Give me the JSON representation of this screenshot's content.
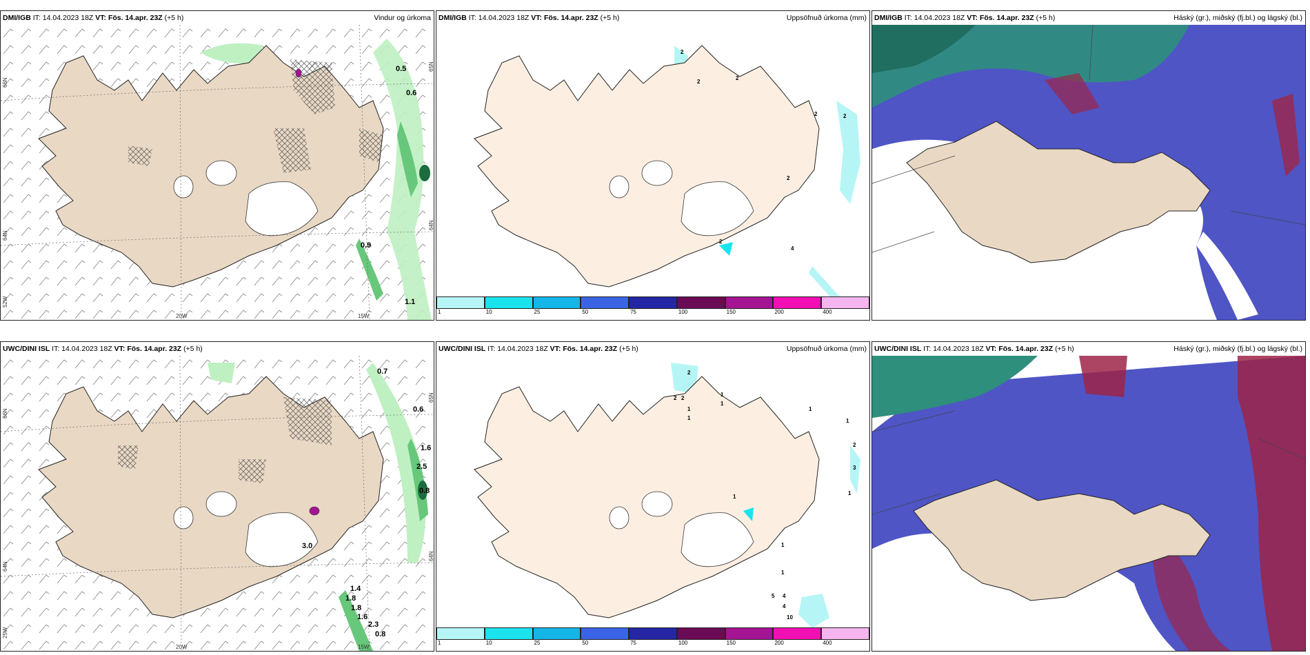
{
  "colors": {
    "land": "#e9d8c4",
    "land_light": "#fcefe2",
    "ice": "#ffffff",
    "precip_green_light": "#bff0c2",
    "precip_green_mid": "#67c77a",
    "precip_green_dark": "#1d6b3e",
    "cyan_light": "#b6f5f5",
    "cloud_high": "#2e8f7c",
    "cloud_mid": "#4f55c5",
    "cloud_low_red": "#9c2548"
  },
  "panels": [
    {
      "model": "DMI/IGB",
      "it_label": "IT:",
      "it_value": "14.04.2023 18Z",
      "vt_label": "VT:",
      "vt_value": "Fös. 14.apr. 23Z",
      "lead": "(+5 h)",
      "title": "Vindur og úrkoma",
      "coords": {
        "lat1": "66N",
        "lat2": "64N",
        "lat3": "52W",
        "lon1": "20W",
        "lon2": "15W",
        "rlat1": "65N",
        "rlat2": "64N"
      },
      "values": [
        "0.5",
        "0.6",
        "0.9",
        "1.1"
      ]
    },
    {
      "model": "DMI/IGB",
      "it_label": "IT:",
      "it_value": "14.04.2023 18Z",
      "vt_label": "VT:",
      "vt_value": "Fös. 14.apr. 23Z",
      "lead": "(+5 h)",
      "title": "Uppsöfnuð úrkoma (mm)",
      "values": [
        "2",
        "2",
        "2",
        "2",
        "2",
        "2",
        "2",
        "4",
        "2"
      ]
    },
    {
      "model": "DMI/IGB",
      "it_label": "IT:",
      "it_value": "14.04.2023 18Z",
      "vt_label": "VT:",
      "vt_value": "Fös. 14.apr. 23Z",
      "lead": "(+5 h)",
      "title": "Háský (gr.), miðský (fj.bl.) og lágský (bl.)"
    },
    {
      "model": "UWC/DINI ISL",
      "it_label": "IT:",
      "it_value": "14.04.2023 18Z",
      "vt_label": "VT:",
      "vt_value": "Fös. 14.apr. 23Z",
      "lead": "(+5 h)",
      "title": "",
      "coords": {
        "lat1": "66N",
        "lat2": "64N",
        "lat3": "25W",
        "lon1": "20W",
        "lon2": "15W",
        "rlat1": "65N",
        "rlat2": "64N"
      },
      "values": [
        "0.7",
        "0.6",
        "1.6",
        "2.5",
        "0.8",
        "3.0",
        "1.4",
        "1.8",
        "1.8",
        "1.6",
        "2.3",
        "0.8"
      ]
    },
    {
      "model": "UWC/DINI ISL",
      "it_label": "IT:",
      "it_value": "14.04.2023 18Z",
      "vt_label": "VT:",
      "vt_value": "Fös. 14.apr. 23Z",
      "lead": "(+5 h)",
      "title": "Uppsöfnuð úrkoma (mm)",
      "values": [
        "2",
        "2",
        "2",
        "1",
        "1",
        "1",
        "1",
        "1",
        "1",
        "1",
        "2",
        "3",
        "1",
        "1",
        "1",
        "5",
        "4",
        "4",
        "10"
      ]
    },
    {
      "model": "UWC/DINI ISL",
      "it_label": "IT:",
      "it_value": "14.04.2023 18Z",
      "vt_label": "VT:",
      "vt_value": "Fös. 14.apr. 23Z",
      "lead": "(+5 h)",
      "title": "Háský (gr.), miðský (fj.bl.) og lágský (bl.)"
    }
  ],
  "colorbar": {
    "labels": [
      "1",
      "10",
      "25",
      "50",
      "75",
      "100",
      "150",
      "200",
      "400"
    ],
    "colors": [
      "#b6f5f5",
      "#1be3ee",
      "#13b6e7",
      "#3b63e6",
      "#2426a6",
      "#6b0a55",
      "#a51493",
      "#f20fb3",
      "#f5b6ef"
    ]
  }
}
